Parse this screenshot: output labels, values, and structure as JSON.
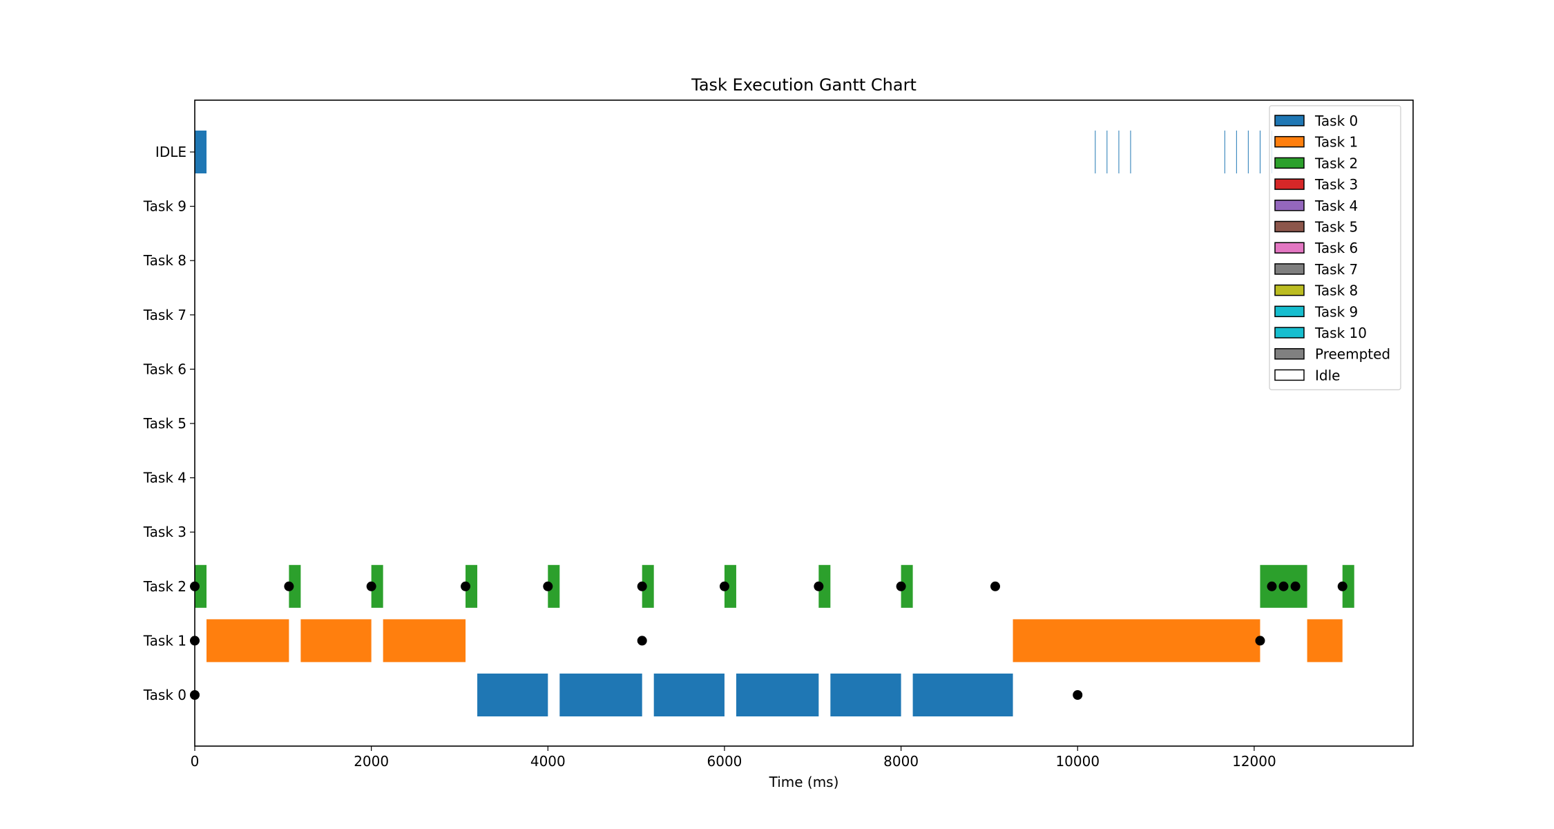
{
  "chart_data": {
    "type": "gantt",
    "title": "Task Execution Gantt Chart",
    "xlabel": "Time (ms)",
    "ylabel": "",
    "xlim": [
      0,
      13800
    ],
    "x_ticks": [
      0,
      2000,
      4000,
      6000,
      8000,
      10000,
      12000
    ],
    "rows": [
      "Task 0",
      "Task 1",
      "Task 2",
      "Task 3",
      "Task 4",
      "Task 5",
      "Task 6",
      "Task 7",
      "Task 8",
      "Task 9",
      "IDLE"
    ],
    "grid": false,
    "legend_position": "top-right",
    "legend": [
      {
        "label": "Task 0",
        "color": "#1f77b4"
      },
      {
        "label": "Task 1",
        "color": "#ff7f0e"
      },
      {
        "label": "Task 2",
        "color": "#2ca02c"
      },
      {
        "label": "Task 3",
        "color": "#d62728"
      },
      {
        "label": "Task 4",
        "color": "#9467bd"
      },
      {
        "label": "Task 5",
        "color": "#8c564b"
      },
      {
        "label": "Task 6",
        "color": "#e377c2"
      },
      {
        "label": "Task 7",
        "color": "#7f7f7f"
      },
      {
        "label": "Task 8",
        "color": "#bcbd22"
      },
      {
        "label": "Task 9",
        "color": "#17becf"
      },
      {
        "label": "Task 10",
        "color": "#17becf"
      },
      {
        "label": "Preempted",
        "color": "#808080"
      },
      {
        "label": "Idle",
        "color": "#ffffff"
      }
    ],
    "segments": [
      {
        "row": "IDLE",
        "start": 0,
        "end": 133,
        "color": "#1f77b4"
      },
      {
        "row": "Task 2",
        "start": 0,
        "end": 133,
        "color": "#2ca02c"
      },
      {
        "row": "Task 2",
        "start": 1067,
        "end": 1200,
        "color": "#2ca02c"
      },
      {
        "row": "Task 2",
        "start": 2000,
        "end": 2133,
        "color": "#2ca02c"
      },
      {
        "row": "Task 2",
        "start": 3067,
        "end": 3200,
        "color": "#2ca02c"
      },
      {
        "row": "Task 2",
        "start": 4000,
        "end": 4133,
        "color": "#2ca02c"
      },
      {
        "row": "Task 2",
        "start": 5067,
        "end": 5200,
        "color": "#2ca02c"
      },
      {
        "row": "Task 2",
        "start": 6000,
        "end": 6133,
        "color": "#2ca02c"
      },
      {
        "row": "Task 2",
        "start": 7067,
        "end": 7200,
        "color": "#2ca02c"
      },
      {
        "row": "Task 2",
        "start": 8000,
        "end": 8133,
        "color": "#2ca02c"
      },
      {
        "row": "Task 2",
        "start": 12067,
        "end": 12600,
        "color": "#2ca02c"
      },
      {
        "row": "Task 2",
        "start": 13000,
        "end": 13133,
        "color": "#2ca02c"
      },
      {
        "row": "Task 1",
        "start": 133,
        "end": 1067,
        "color": "#ff7f0e"
      },
      {
        "row": "Task 1",
        "start": 1200,
        "end": 2000,
        "color": "#ff7f0e"
      },
      {
        "row": "Task 1",
        "start": 2133,
        "end": 3067,
        "color": "#ff7f0e"
      },
      {
        "row": "Task 1",
        "start": 9267,
        "end": 12067,
        "color": "#ff7f0e"
      },
      {
        "row": "Task 1",
        "start": 12600,
        "end": 13000,
        "color": "#ff7f0e"
      },
      {
        "row": "Task 0",
        "start": 3200,
        "end": 4000,
        "color": "#1f77b4"
      },
      {
        "row": "Task 0",
        "start": 4133,
        "end": 5067,
        "color": "#1f77b4"
      },
      {
        "row": "Task 0",
        "start": 5200,
        "end": 6000,
        "color": "#1f77b4"
      },
      {
        "row": "Task 0",
        "start": 6133,
        "end": 7067,
        "color": "#1f77b4"
      },
      {
        "row": "Task 0",
        "start": 7200,
        "end": 8000,
        "color": "#1f77b4"
      },
      {
        "row": "Task 0",
        "start": 8133,
        "end": 9267,
        "color": "#1f77b4"
      }
    ],
    "idle_marks": [
      10200,
      10333,
      10467,
      10600,
      11667,
      11800,
      11933,
      12067,
      12200
    ],
    "arrivals": [
      {
        "row": "Task 2",
        "x": 0
      },
      {
        "row": "Task 2",
        "x": 1067
      },
      {
        "row": "Task 2",
        "x": 2000
      },
      {
        "row": "Task 2",
        "x": 3067
      },
      {
        "row": "Task 2",
        "x": 4000
      },
      {
        "row": "Task 2",
        "x": 5067
      },
      {
        "row": "Task 2",
        "x": 6000
      },
      {
        "row": "Task 2",
        "x": 7067
      },
      {
        "row": "Task 2",
        "x": 8000
      },
      {
        "row": "Task 2",
        "x": 9067
      },
      {
        "row": "Task 2",
        "x": 12200
      },
      {
        "row": "Task 2",
        "x": 12333
      },
      {
        "row": "Task 2",
        "x": 12467
      },
      {
        "row": "Task 2",
        "x": 13000
      },
      {
        "row": "Task 1",
        "x": 0
      },
      {
        "row": "Task 1",
        "x": 5067
      },
      {
        "row": "Task 1",
        "x": 12067
      },
      {
        "row": "Task 0",
        "x": 0
      },
      {
        "row": "Task 0",
        "x": 10000
      }
    ]
  }
}
